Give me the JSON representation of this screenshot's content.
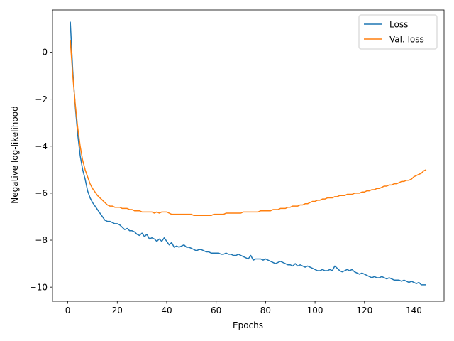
{
  "chart_data": {
    "type": "line",
    "xlabel": "Epochs",
    "ylabel": "Negative log-likelihood",
    "xlim": [
      -6.2,
      152.2
    ],
    "ylim": [
      -10.6,
      1.8
    ],
    "xticks": [
      0,
      20,
      40,
      60,
      80,
      100,
      120,
      140
    ],
    "yticks": [
      -10,
      -8,
      -6,
      -4,
      -2,
      0
    ],
    "ytick_labels": [
      "−10",
      "−8",
      "−6",
      "−4",
      "−2",
      "0"
    ],
    "grid": false,
    "legend_position": "top-right",
    "series": [
      {
        "name": "Loss",
        "color": "#1f77b4",
        "x": [
          1,
          2,
          3,
          4,
          5,
          6,
          7,
          8,
          9,
          10,
          11,
          12,
          13,
          14,
          15,
          16,
          17,
          18,
          19,
          20,
          21,
          22,
          23,
          24,
          25,
          26,
          27,
          28,
          29,
          30,
          31,
          32,
          33,
          34,
          35,
          36,
          37,
          38,
          39,
          40,
          41,
          42,
          43,
          44,
          45,
          46,
          47,
          48,
          49,
          50,
          51,
          52,
          53,
          54,
          55,
          56,
          57,
          58,
          59,
          60,
          61,
          62,
          63,
          64,
          65,
          66,
          67,
          68,
          69,
          70,
          71,
          72,
          73,
          74,
          75,
          76,
          77,
          78,
          79,
          80,
          81,
          82,
          83,
          84,
          85,
          86,
          87,
          88,
          89,
          90,
          91,
          92,
          93,
          94,
          95,
          96,
          97,
          98,
          99,
          100,
          101,
          102,
          103,
          104,
          105,
          106,
          107,
          108,
          109,
          110,
          111,
          112,
          113,
          114,
          115,
          116,
          117,
          118,
          119,
          120,
          121,
          122,
          123,
          124,
          125,
          126,
          127,
          128,
          129,
          130,
          131,
          132,
          133,
          134,
          135,
          136,
          137,
          138,
          139,
          140,
          141,
          142,
          143,
          144,
          145
        ],
        "y": [
          1.3,
          -0.8,
          -2.3,
          -3.5,
          -4.4,
          -5.0,
          -5.4,
          -5.9,
          -6.2,
          -6.4,
          -6.55,
          -6.7,
          -6.85,
          -7.0,
          -7.15,
          -7.2,
          -7.2,
          -7.25,
          -7.3,
          -7.3,
          -7.35,
          -7.45,
          -7.55,
          -7.5,
          -7.6,
          -7.6,
          -7.65,
          -7.75,
          -7.8,
          -7.7,
          -7.85,
          -7.75,
          -7.95,
          -7.9,
          -7.95,
          -8.05,
          -7.95,
          -8.05,
          -7.9,
          -8.05,
          -8.2,
          -8.1,
          -8.3,
          -8.25,
          -8.3,
          -8.25,
          -8.2,
          -8.3,
          -8.3,
          -8.35,
          -8.4,
          -8.45,
          -8.4,
          -8.4,
          -8.45,
          -8.5,
          -8.5,
          -8.55,
          -8.55,
          -8.55,
          -8.55,
          -8.6,
          -8.6,
          -8.55,
          -8.6,
          -8.6,
          -8.65,
          -8.65,
          -8.6,
          -8.65,
          -8.7,
          -8.75,
          -8.8,
          -8.65,
          -8.85,
          -8.8,
          -8.8,
          -8.8,
          -8.85,
          -8.8,
          -8.85,
          -8.9,
          -8.95,
          -9.0,
          -8.95,
          -8.9,
          -8.95,
          -9.0,
          -9.05,
          -9.05,
          -9.1,
          -9.0,
          -9.1,
          -9.05,
          -9.1,
          -9.15,
          -9.1,
          -9.15,
          -9.2,
          -9.25,
          -9.3,
          -9.3,
          -9.25,
          -9.3,
          -9.3,
          -9.25,
          -9.3,
          -9.1,
          -9.2,
          -9.3,
          -9.35,
          -9.3,
          -9.25,
          -9.3,
          -9.25,
          -9.35,
          -9.4,
          -9.45,
          -9.4,
          -9.45,
          -9.5,
          -9.55,
          -9.6,
          -9.55,
          -9.6,
          -9.6,
          -9.55,
          -9.6,
          -9.65,
          -9.6,
          -9.65,
          -9.7,
          -9.7,
          -9.7,
          -9.75,
          -9.7,
          -9.75,
          -9.8,
          -9.75,
          -9.8,
          -9.85,
          -9.8,
          -9.9,
          -9.9,
          -9.9
        ]
      },
      {
        "name": "Val. loss",
        "color": "#ff7f0e",
        "x": [
          1,
          2,
          3,
          4,
          5,
          6,
          7,
          8,
          9,
          10,
          11,
          12,
          13,
          14,
          15,
          16,
          17,
          18,
          19,
          20,
          21,
          22,
          23,
          24,
          25,
          26,
          27,
          28,
          29,
          30,
          31,
          32,
          33,
          34,
          35,
          36,
          37,
          38,
          39,
          40,
          41,
          42,
          43,
          44,
          45,
          46,
          47,
          48,
          49,
          50,
          51,
          52,
          53,
          54,
          55,
          56,
          57,
          58,
          59,
          60,
          61,
          62,
          63,
          64,
          65,
          66,
          67,
          68,
          69,
          70,
          71,
          72,
          73,
          74,
          75,
          76,
          77,
          78,
          79,
          80,
          81,
          82,
          83,
          84,
          85,
          86,
          87,
          88,
          89,
          90,
          91,
          92,
          93,
          94,
          95,
          96,
          97,
          98,
          99,
          100,
          101,
          102,
          103,
          104,
          105,
          106,
          107,
          108,
          109,
          110,
          111,
          112,
          113,
          114,
          115,
          116,
          117,
          118,
          119,
          120,
          121,
          122,
          123,
          124,
          125,
          126,
          127,
          128,
          129,
          130,
          131,
          132,
          133,
          134,
          135,
          136,
          137,
          138,
          139,
          140,
          141,
          142,
          143,
          144,
          145
        ],
        "y": [
          0.5,
          -1.0,
          -2.2,
          -3.2,
          -4.0,
          -4.6,
          -5.0,
          -5.3,
          -5.6,
          -5.8,
          -5.95,
          -6.1,
          -6.2,
          -6.3,
          -6.4,
          -6.5,
          -6.55,
          -6.55,
          -6.6,
          -6.6,
          -6.6,
          -6.65,
          -6.65,
          -6.65,
          -6.7,
          -6.7,
          -6.75,
          -6.75,
          -6.75,
          -6.8,
          -6.8,
          -6.8,
          -6.8,
          -6.8,
          -6.85,
          -6.8,
          -6.85,
          -6.8,
          -6.8,
          -6.8,
          -6.85,
          -6.9,
          -6.9,
          -6.9,
          -6.9,
          -6.9,
          -6.9,
          -6.9,
          -6.9,
          -6.9,
          -6.95,
          -6.95,
          -6.95,
          -6.95,
          -6.95,
          -6.95,
          -6.95,
          -6.95,
          -6.9,
          -6.9,
          -6.9,
          -6.9,
          -6.9,
          -6.85,
          -6.85,
          -6.85,
          -6.85,
          -6.85,
          -6.85,
          -6.85,
          -6.8,
          -6.8,
          -6.8,
          -6.8,
          -6.8,
          -6.8,
          -6.8,
          -6.75,
          -6.75,
          -6.75,
          -6.75,
          -6.75,
          -6.7,
          -6.7,
          -6.7,
          -6.65,
          -6.65,
          -6.65,
          -6.6,
          -6.6,
          -6.55,
          -6.55,
          -6.55,
          -6.5,
          -6.5,
          -6.45,
          -6.45,
          -6.4,
          -6.35,
          -6.35,
          -6.3,
          -6.3,
          -6.25,
          -6.25,
          -6.2,
          -6.2,
          -6.2,
          -6.15,
          -6.15,
          -6.1,
          -6.1,
          -6.1,
          -6.05,
          -6.05,
          -6.05,
          -6.0,
          -6.0,
          -6.0,
          -5.95,
          -5.95,
          -5.9,
          -5.9,
          -5.85,
          -5.85,
          -5.8,
          -5.8,
          -5.75,
          -5.7,
          -5.7,
          -5.65,
          -5.65,
          -5.6,
          -5.6,
          -5.55,
          -5.5,
          -5.5,
          -5.45,
          -5.45,
          -5.4,
          -5.3,
          -5.25,
          -5.2,
          -5.15,
          -5.05,
          -5.0
        ]
      }
    ]
  }
}
